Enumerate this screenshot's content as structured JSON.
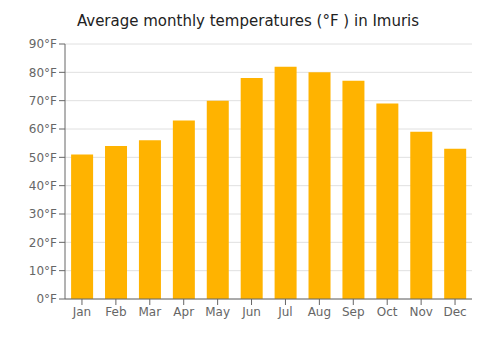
{
  "chart_data": {
    "type": "bar",
    "title": "Average monthly temperatures (°F ) in Imuris",
    "categories": [
      "Jan",
      "Feb",
      "Mar",
      "Apr",
      "May",
      "Jun",
      "Jul",
      "Aug",
      "Sep",
      "Oct",
      "Nov",
      "Dec"
    ],
    "values": [
      51,
      54,
      56,
      63,
      70,
      78,
      82,
      80,
      77,
      69,
      59,
      53
    ],
    "color": "#FFB300",
    "ylim": [
      0,
      90
    ],
    "yticks": [
      {
        "value": 0,
        "label": "0°F"
      },
      {
        "value": 10,
        "label": "10°F"
      },
      {
        "value": 20,
        "label": "20°F"
      },
      {
        "value": 30,
        "label": "30°F"
      },
      {
        "value": 40,
        "label": "40°F"
      },
      {
        "value": 50,
        "label": "50°F"
      },
      {
        "value": 60,
        "label": "60°F"
      },
      {
        "value": 70,
        "label": "70°F"
      },
      {
        "value": 80,
        "label": "80°F"
      },
      {
        "value": 90,
        "label": "90°F"
      }
    ],
    "grid": true
  }
}
